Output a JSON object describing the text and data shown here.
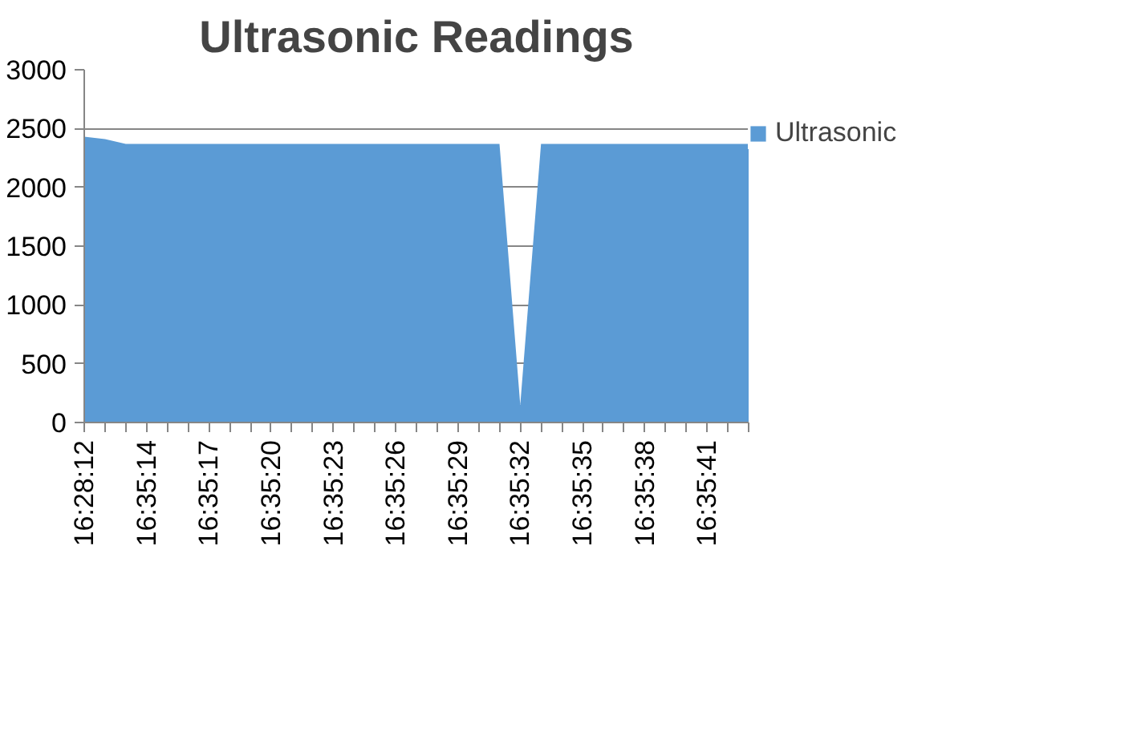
{
  "chart_data": {
    "type": "area",
    "title": "Ultrasonic Readings",
    "categories": [
      "16:28:12",
      null,
      null,
      "16:35:14",
      null,
      null,
      "16:35:17",
      null,
      null,
      "16:35:20",
      null,
      null,
      "16:35:23",
      null,
      null,
      "16:35:26",
      null,
      null,
      "16:35:29",
      null,
      null,
      "16:35:32",
      null,
      null,
      "16:35:35",
      null,
      null,
      "16:35:38",
      null,
      null,
      "16:35:41",
      null,
      null
    ],
    "series": [
      {
        "name": "Ultrasonic",
        "color": "#5b9bd5",
        "values": [
          2430,
          2410,
          2370,
          2370,
          2370,
          2370,
          2370,
          2370,
          2370,
          2370,
          2370,
          2370,
          2370,
          2370,
          2370,
          2370,
          2370,
          2370,
          2370,
          2370,
          2370,
          150,
          2370,
          2370,
          2370,
          2370,
          2370,
          2370,
          2370,
          2370,
          2370,
          2370,
          2370
        ]
      }
    ],
    "ylim": [
      0,
      3000
    ],
    "yticks": [
      0,
      500,
      1000,
      1500,
      2000,
      2500,
      3000
    ],
    "grid": "y",
    "legend": "right"
  }
}
